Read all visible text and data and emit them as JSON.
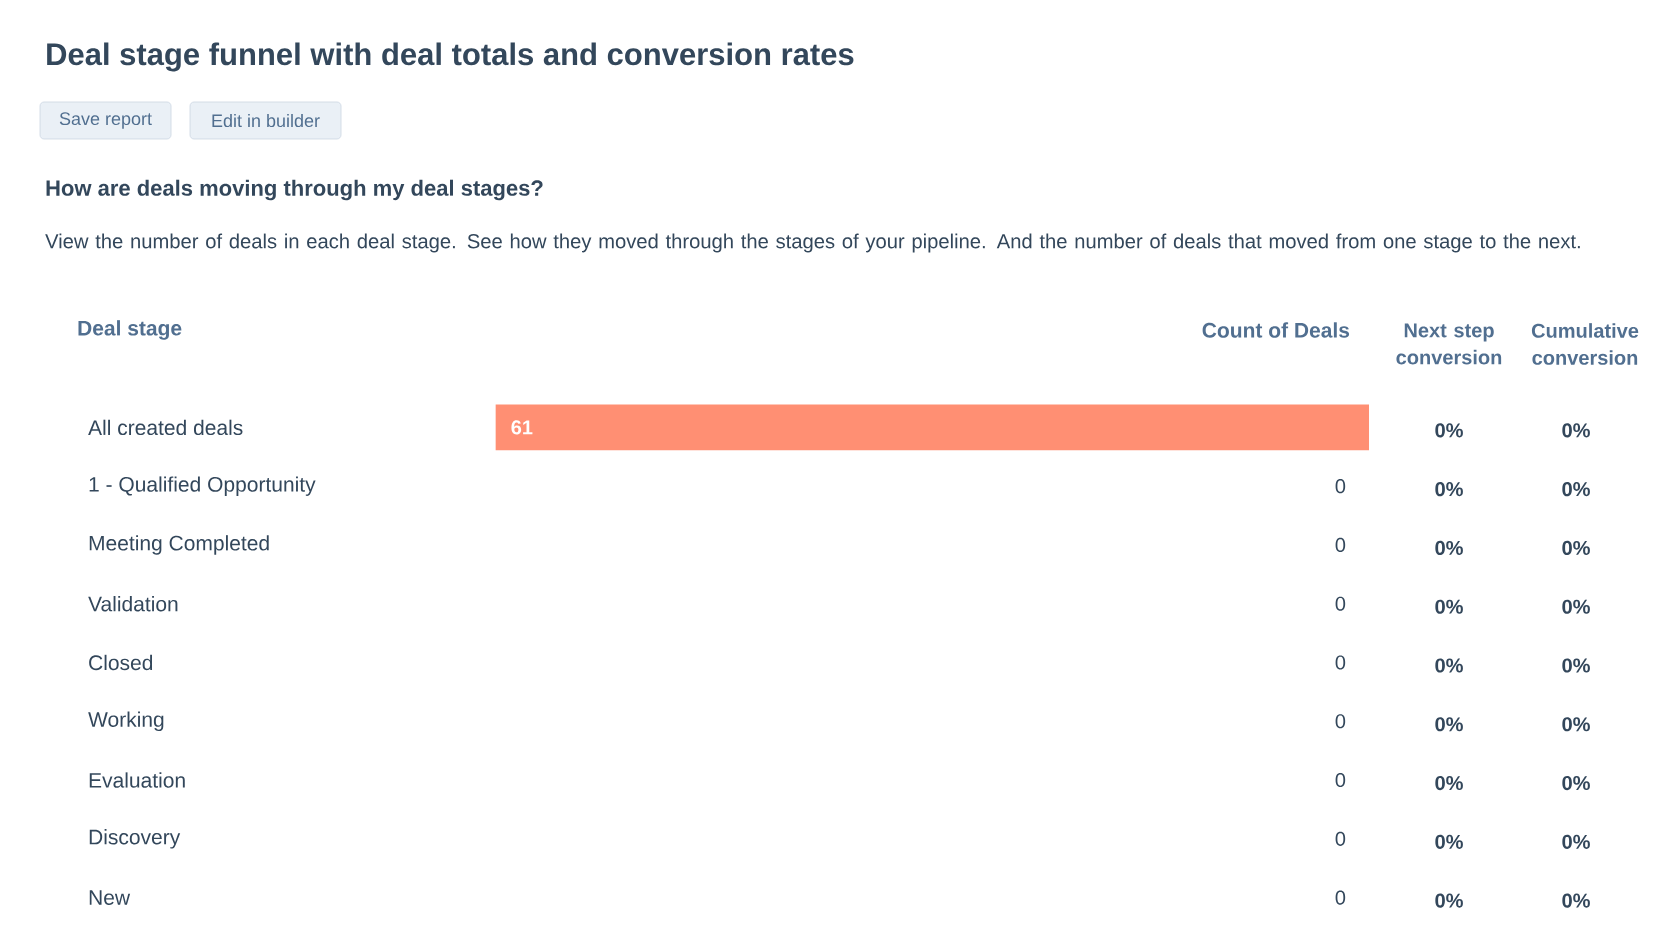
{
  "chart_data": {
    "type": "bar",
    "orientation": "horizontal",
    "title": "Deal stage funnel with deal totals and conversion rates",
    "subtitle": "How are deals moving through my deal stages?",
    "ylabel": "Deal stage",
    "xlabel": "Count of Deals",
    "categories": [
      "All created deals",
      "1 - Qualified Opportunity",
      "Meeting Completed",
      "Validation",
      "Closed",
      "Working",
      "Evaluation",
      "Discovery",
      "New"
    ],
    "values": [
      61,
      0,
      0,
      0,
      0,
      0,
      0,
      0,
      0
    ],
    "colors": [
      "#ff8f73",
      "#fc8470",
      "#f67a7c",
      "#f07586",
      "#e97294",
      "#de70a3",
      "#d16fb1",
      "#bf6fbd",
      "#a86fc4"
    ],
    "data_labels": true,
    "annotations": [
      "Save report",
      "Edit in builder",
      "View the number of deals in each deal stage. See how they moved through the stages of your pipeline. And the number of deals that moved from one stage to the next.",
      "Next step conversion",
      "Cumulative conversion",
      "0%",
      "0%",
      "0%",
      "0%",
      "0%",
      "0%",
      "0%",
      "0%",
      "0%",
      "0%",
      "0%",
      "0%",
      "0%",
      "0%",
      "0%",
      "0%",
      "0%",
      "0%"
    ]
  }
}
